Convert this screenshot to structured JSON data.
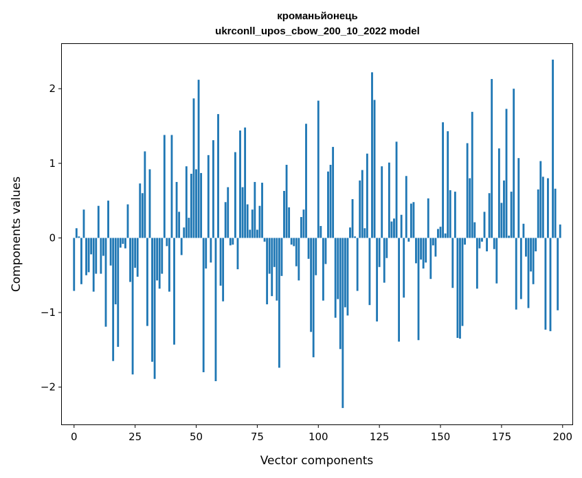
{
  "chart_data": {
    "type": "bar",
    "title": "кроманьйонець",
    "subtitle": "ukrconll_upos_cbow_200_10_2022 model",
    "xlabel": "Vector components",
    "ylabel": "Components values",
    "xlim": [
      -5,
      204
    ],
    "ylim": [
      -2.5,
      2.6
    ],
    "xticks": [
      0,
      25,
      50,
      75,
      100,
      125,
      150,
      175,
      200
    ],
    "yticks": [
      -2,
      -1,
      0,
      1,
      2
    ],
    "ytick_labels": [
      "−2",
      "−1",
      "0",
      "1",
      "2"
    ],
    "bar_color": "#1f77b4",
    "grid": false,
    "values": [
      -0.71,
      0.13,
      0.02,
      -0.62,
      0.38,
      -0.5,
      -0.46,
      -0.22,
      -0.72,
      -0.48,
      0.43,
      -0.48,
      -0.24,
      -1.19,
      0.5,
      -0.37,
      -1.65,
      -0.89,
      -1.46,
      -0.13,
      -0.08,
      -0.14,
      0.45,
      -0.59,
      -1.83,
      -0.4,
      -0.52,
      0.73,
      0.6,
      1.16,
      -1.18,
      0.92,
      -1.66,
      -1.89,
      -0.57,
      -0.68,
      -0.48,
      1.38,
      -0.11,
      -0.72,
      1.38,
      -1.43,
      0.75,
      0.35,
      -0.23,
      0.14,
      0.96,
      0.27,
      0.86,
      1.87,
      0.92,
      2.12,
      0.87,
      -1.8,
      -0.41,
      1.11,
      -0.33,
      1.31,
      -1.92,
      1.66,
      -0.64,
      -0.85,
      0.48,
      0.68,
      -0.1,
      -0.09,
      1.15,
      -0.42,
      1.44,
      0.68,
      1.48,
      0.45,
      0.11,
      0.38,
      0.75,
      0.11,
      0.43,
      0.74,
      -0.05,
      -0.89,
      -0.48,
      -0.78,
      -0.39,
      -0.84,
      -1.74,
      -0.51,
      0.63,
      0.98,
      0.41,
      -0.09,
      -0.11,
      -0.38,
      -0.57,
      0.28,
      0.38,
      1.53,
      -0.28,
      -1.26,
      -1.6,
      -0.5,
      1.84,
      0.16,
      -0.84,
      -0.35,
      0.89,
      0.98,
      1.22,
      -1.07,
      -0.82,
      -1.49,
      -2.28,
      -0.93,
      -1.04,
      0.14,
      0.52,
      0.02,
      -0.71,
      0.77,
      0.91,
      0.13,
      1.13,
      -0.9,
      2.22,
      1.85,
      -1.12,
      -0.39,
      0.96,
      -0.6,
      -0.27,
      1.01,
      0.22,
      0.26,
      1.29,
      -1.39,
      0.31,
      -0.8,
      0.83,
      -0.05,
      0.46,
      0.48,
      -0.34,
      -1.37,
      -0.29,
      -0.41,
      -0.33,
      0.53,
      -0.55,
      -0.1,
      -0.25,
      0.12,
      0.15,
      1.55,
      0.06,
      1.43,
      0.64,
      -0.67,
      0.62,
      -1.34,
      -1.35,
      -1.18,
      -0.09,
      1.27,
      0.8,
      1.69,
      0.21,
      -0.68,
      -0.14,
      -0.05,
      0.35,
      -0.18,
      0.6,
      2.13,
      -0.15,
      -0.61,
      1.2,
      0.47,
      0.77,
      1.73,
      0.03,
      0.62,
      2.0,
      -0.96,
      1.07,
      -0.82,
      0.19,
      -0.25,
      -0.94,
      -0.45,
      -0.62,
      -0.18,
      0.65,
      1.03,
      0.82,
      -1.23,
      0.8,
      -1.25,
      2.39,
      0.66,
      -0.97,
      0.18
    ]
  }
}
